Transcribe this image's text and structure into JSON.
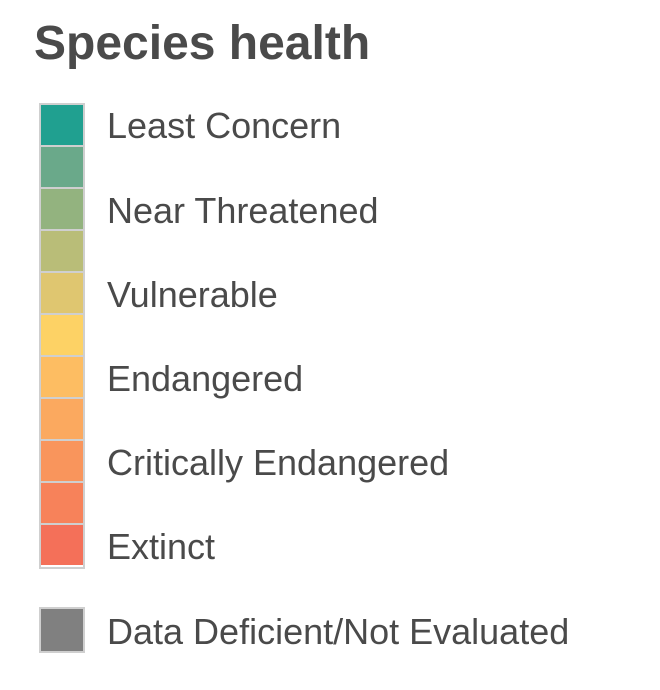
{
  "legend": {
    "title": "Species health",
    "swatches": [
      {
        "color": "#20a090"
      },
      {
        "color": "#6aa98a"
      },
      {
        "color": "#93b37f"
      },
      {
        "color": "#b9bd78"
      },
      {
        "color": "#dfc670"
      },
      {
        "color": "#fdd265"
      },
      {
        "color": "#fdbd62"
      },
      {
        "color": "#fba95f"
      },
      {
        "color": "#f9955c"
      },
      {
        "color": "#f7825a"
      },
      {
        "color": "#f47059"
      }
    ],
    "labels": [
      "Least Concern",
      "Near Threatened",
      "Vulnerable",
      "Endangered",
      "Critically Endangered",
      "Extinct"
    ],
    "data_deficient": {
      "label": "Data Deficient/Not Evaluated",
      "color": "#808080"
    },
    "border_color": "#cfcfcf",
    "text_color": "#4a4a4a"
  }
}
